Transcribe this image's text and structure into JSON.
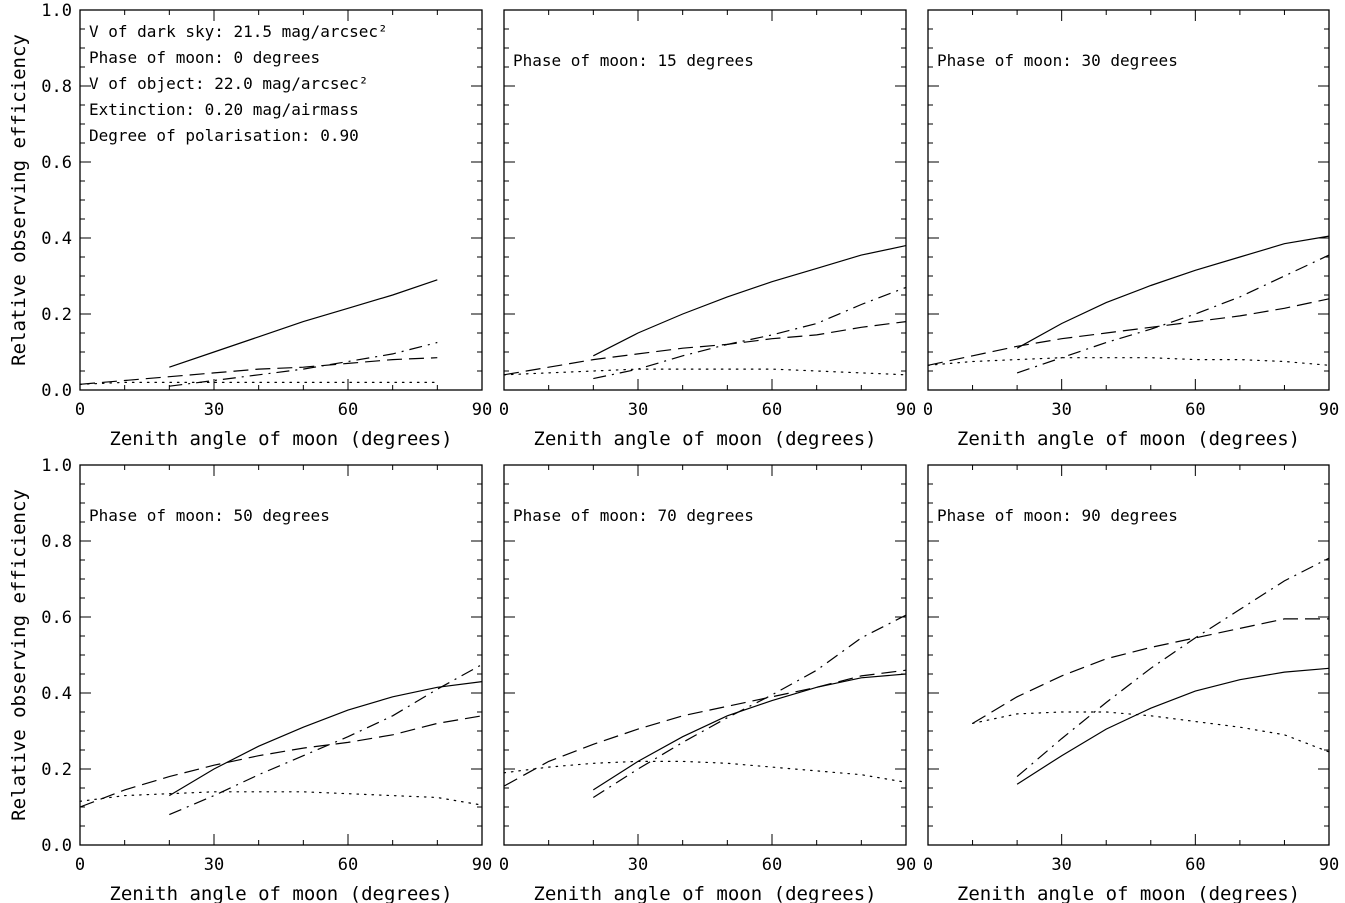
{
  "figure": {
    "ylabel": "Relative observing efficiency",
    "xlabel": "Zenith angle of moon (degrees)",
    "colors": {
      "line": "#000000",
      "background": "#ffffff"
    }
  },
  "chart_data": [
    {
      "type": "line",
      "annotations": [
        "V of dark sky: 21.5 mag/arcsec²",
        "Phase of moon:  0 degrees",
        "V of object: 22.0 mag/arcsec²",
        "Extinction: 0.20 mag/airmass",
        "Degree of polarisation: 0.90"
      ],
      "xlabel": "Zenith angle of moon (degrees)",
      "ylabel": "Relative observing efficiency",
      "xlim": [
        0,
        90
      ],
      "ylim": [
        0,
        1.0
      ],
      "xticks": [
        "0",
        "30",
        "60",
        "90"
      ],
      "yticks": [
        "0.0",
        "0.2",
        "0.4",
        "0.6",
        "0.8",
        "1.0"
      ],
      "series": [
        {
          "style": "solid",
          "x": [
            20,
            30,
            40,
            50,
            60,
            70,
            80
          ],
          "y": [
            0.06,
            0.1,
            0.14,
            0.18,
            0.215,
            0.25,
            0.29
          ]
        },
        {
          "style": "dashed",
          "x": [
            0,
            10,
            20,
            30,
            40,
            50,
            60,
            70,
            80
          ],
          "y": [
            0.015,
            0.025,
            0.035,
            0.045,
            0.055,
            0.06,
            0.07,
            0.08,
            0.085
          ]
        },
        {
          "style": "dashdot",
          "x": [
            20,
            30,
            40,
            50,
            60,
            70,
            80
          ],
          "y": [
            0.01,
            0.025,
            0.04,
            0.055,
            0.075,
            0.095,
            0.125
          ]
        },
        {
          "style": "dotted",
          "x": [
            0,
            10,
            20,
            30,
            40,
            50,
            60,
            70,
            80
          ],
          "y": [
            0.015,
            0.02,
            0.02,
            0.02,
            0.02,
            0.02,
            0.02,
            0.02,
            0.02
          ]
        }
      ]
    },
    {
      "type": "line",
      "annotations": [
        "Phase of moon: 15 degrees"
      ],
      "xlabel": "Zenith angle of moon (degrees)",
      "ylabel": "",
      "xlim": [
        0,
        90
      ],
      "ylim": [
        0,
        1.0
      ],
      "xticks": [
        "0",
        "30",
        "60",
        "90"
      ],
      "yticks": [],
      "series": [
        {
          "style": "solid",
          "x": [
            20,
            30,
            40,
            50,
            60,
            70,
            80,
            90
          ],
          "y": [
            0.09,
            0.15,
            0.2,
            0.245,
            0.285,
            0.32,
            0.355,
            0.38
          ]
        },
        {
          "style": "dashed",
          "x": [
            0,
            10,
            20,
            30,
            40,
            50,
            60,
            70,
            80,
            90
          ],
          "y": [
            0.04,
            0.06,
            0.08,
            0.095,
            0.11,
            0.12,
            0.135,
            0.145,
            0.165,
            0.18
          ]
        },
        {
          "style": "dashdot",
          "x": [
            20,
            30,
            40,
            50,
            60,
            70,
            80,
            90
          ],
          "y": [
            0.03,
            0.055,
            0.09,
            0.12,
            0.145,
            0.175,
            0.225,
            0.27
          ]
        },
        {
          "style": "dotted",
          "x": [
            0,
            10,
            20,
            30,
            40,
            50,
            60,
            70,
            80,
            90
          ],
          "y": [
            0.04,
            0.045,
            0.05,
            0.055,
            0.055,
            0.055,
            0.055,
            0.05,
            0.045,
            0.04
          ]
        }
      ]
    },
    {
      "type": "line",
      "annotations": [
        "Phase of moon: 30 degrees"
      ],
      "xlabel": "Zenith angle of moon (degrees)",
      "ylabel": "",
      "xlim": [
        0,
        90
      ],
      "ylim": [
        0,
        1.0
      ],
      "xticks": [
        "0",
        "30",
        "60",
        "90"
      ],
      "yticks": [],
      "series": [
        {
          "style": "solid",
          "x": [
            20,
            30,
            40,
            50,
            60,
            70,
            80,
            90
          ],
          "y": [
            0.11,
            0.175,
            0.23,
            0.275,
            0.315,
            0.35,
            0.385,
            0.405
          ]
        },
        {
          "style": "dashed",
          "x": [
            0,
            10,
            20,
            30,
            40,
            50,
            60,
            70,
            80,
            90
          ],
          "y": [
            0.065,
            0.09,
            0.115,
            0.135,
            0.15,
            0.165,
            0.18,
            0.195,
            0.215,
            0.24
          ]
        },
        {
          "style": "dashdot",
          "x": [
            20,
            30,
            40,
            50,
            60,
            70,
            80,
            90
          ],
          "y": [
            0.045,
            0.085,
            0.125,
            0.16,
            0.2,
            0.245,
            0.3,
            0.355
          ]
        },
        {
          "style": "dotted",
          "x": [
            0,
            10,
            20,
            30,
            40,
            50,
            60,
            70,
            80,
            90
          ],
          "y": [
            0.065,
            0.075,
            0.08,
            0.085,
            0.085,
            0.085,
            0.08,
            0.08,
            0.075,
            0.065
          ]
        }
      ]
    },
    {
      "type": "line",
      "annotations": [
        "Phase of moon: 50 degrees"
      ],
      "xlabel": "Zenith angle of moon (degrees)",
      "ylabel": "Relative observing efficiency",
      "xlim": [
        0,
        90
      ],
      "ylim": [
        0,
        1.0
      ],
      "xticks": [
        "0",
        "30",
        "60",
        "90"
      ],
      "yticks": [
        "0.0",
        "0.2",
        "0.4",
        "0.6",
        "0.8",
        "1.0"
      ],
      "series": [
        {
          "style": "solid",
          "x": [
            20,
            30,
            40,
            50,
            60,
            70,
            80,
            90
          ],
          "y": [
            0.13,
            0.2,
            0.26,
            0.31,
            0.355,
            0.39,
            0.415,
            0.43
          ]
        },
        {
          "style": "dashed",
          "x": [
            0,
            10,
            20,
            30,
            40,
            50,
            60,
            70,
            80,
            90
          ],
          "y": [
            0.1,
            0.145,
            0.18,
            0.21,
            0.235,
            0.255,
            0.27,
            0.29,
            0.32,
            0.34
          ]
        },
        {
          "style": "dashdot",
          "x": [
            20,
            30,
            40,
            50,
            60,
            70,
            80,
            90
          ],
          "y": [
            0.08,
            0.13,
            0.185,
            0.235,
            0.285,
            0.34,
            0.41,
            0.475
          ]
        },
        {
          "style": "dotted",
          "x": [
            0,
            10,
            20,
            30,
            40,
            50,
            60,
            70,
            80,
            90
          ],
          "y": [
            0.115,
            0.13,
            0.135,
            0.14,
            0.14,
            0.14,
            0.135,
            0.13,
            0.125,
            0.105
          ]
        }
      ]
    },
    {
      "type": "line",
      "annotations": [
        "Phase of moon: 70 degrees"
      ],
      "xlabel": "Zenith angle of moon (degrees)",
      "ylabel": "",
      "xlim": [
        0,
        90
      ],
      "ylim": [
        0,
        1.0
      ],
      "xticks": [
        "0",
        "30",
        "60",
        "90"
      ],
      "yticks": [],
      "series": [
        {
          "style": "solid",
          "x": [
            20,
            30,
            40,
            50,
            60,
            70,
            80,
            90
          ],
          "y": [
            0.145,
            0.22,
            0.285,
            0.34,
            0.38,
            0.415,
            0.44,
            0.45
          ]
        },
        {
          "style": "dashed",
          "x": [
            0,
            10,
            20,
            30,
            40,
            50,
            60,
            70,
            80,
            90
          ],
          "y": [
            0.155,
            0.22,
            0.265,
            0.305,
            0.34,
            0.365,
            0.39,
            0.415,
            0.445,
            0.46
          ]
        },
        {
          "style": "dashdot",
          "x": [
            20,
            30,
            40,
            50,
            60,
            70,
            80,
            90
          ],
          "y": [
            0.125,
            0.2,
            0.27,
            0.335,
            0.395,
            0.46,
            0.545,
            0.605
          ]
        },
        {
          "style": "dotted",
          "x": [
            0,
            10,
            20,
            30,
            40,
            50,
            60,
            70,
            80,
            90
          ],
          "y": [
            0.19,
            0.205,
            0.215,
            0.22,
            0.22,
            0.215,
            0.205,
            0.195,
            0.185,
            0.165
          ]
        }
      ]
    },
    {
      "type": "line",
      "annotations": [
        "Phase of moon: 90 degrees"
      ],
      "xlabel": "Zenith angle of moon (degrees)",
      "ylabel": "",
      "xlim": [
        0,
        90
      ],
      "ylim": [
        0,
        1.0
      ],
      "xticks": [
        "0",
        "30",
        "60",
        "90"
      ],
      "yticks": [],
      "series": [
        {
          "style": "solid",
          "x": [
            20,
            30,
            40,
            50,
            60,
            70,
            80,
            90
          ],
          "y": [
            0.16,
            0.235,
            0.305,
            0.36,
            0.405,
            0.435,
            0.455,
            0.465
          ]
        },
        {
          "style": "dashed",
          "x": [
            10,
            20,
            30,
            40,
            50,
            60,
            70,
            80,
            90
          ],
          "y": [
            0.32,
            0.39,
            0.445,
            0.49,
            0.52,
            0.545,
            0.57,
            0.595,
            0.595
          ]
        },
        {
          "style": "dashdot",
          "x": [
            20,
            30,
            40,
            50,
            60,
            70,
            80,
            90
          ],
          "y": [
            0.18,
            0.28,
            0.375,
            0.465,
            0.545,
            0.62,
            0.695,
            0.755
          ]
        },
        {
          "style": "dotted",
          "x": [
            10,
            20,
            30,
            40,
            50,
            60,
            70,
            80,
            90
          ],
          "y": [
            0.32,
            0.345,
            0.35,
            0.35,
            0.34,
            0.325,
            0.31,
            0.29,
            0.245
          ]
        }
      ]
    }
  ]
}
